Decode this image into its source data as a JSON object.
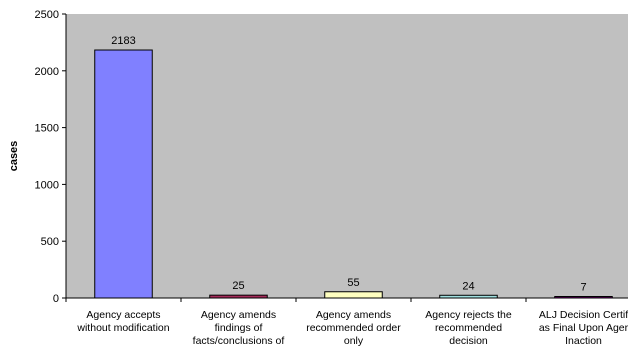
{
  "chart_data": {
    "type": "bar",
    "title": "",
    "xlabel": "",
    "ylabel": "cases",
    "ylim": [
      0,
      2500
    ],
    "yticks": [
      0,
      500,
      1000,
      1500,
      2000,
      2500
    ],
    "grid": false,
    "legend": "none",
    "categories": [
      [
        "Agency accepts",
        "without modification"
      ],
      [
        "Agency amends",
        "findings of",
        "facts/conclusions of"
      ],
      [
        "Agency amends",
        "recommended order",
        "only"
      ],
      [
        "Agency rejects the",
        "recommended",
        "decision"
      ],
      [
        "ALJ Decision Certif",
        "as Final Upon Ager",
        "Inaction"
      ]
    ],
    "values": [
      2183,
      25,
      55,
      24,
      7
    ],
    "colors": [
      "#8080ff",
      "#a52a5a",
      "#ffffc0",
      "#a0e0e0",
      "#6a006a"
    ],
    "plot_background": "#c0c0c0"
  }
}
